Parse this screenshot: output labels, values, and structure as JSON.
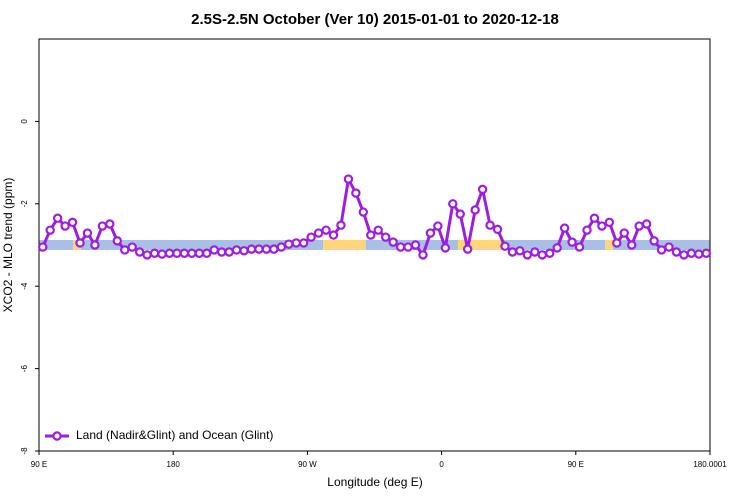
{
  "chart_data": {
    "type": "line",
    "title": "2.5S-2.5N October (Ver 10)   2015-01-01 to 2020-12-18",
    "xlabel": "Longitude (deg E)",
    "ylabel": "XCO2 - MLO trend (ppm)",
    "x": [
      92.5,
      97.5,
      102.5,
      107.5,
      112.5,
      117.5,
      122.5,
      127.5,
      132.5,
      137.5,
      142.5,
      147.5,
      152.5,
      157.5,
      162.5,
      167.5,
      172.5,
      177.5,
      182.5,
      187.5,
      192.5,
      197.5,
      202.5,
      207.5,
      212.5,
      217.5,
      222.5,
      227.5,
      232.5,
      237.5,
      242.5,
      247.5,
      252.5,
      257.5,
      262.5,
      267.5,
      272.5,
      277.5,
      282.5,
      287.5,
      292.5,
      297.5,
      302.5,
      307.5,
      312.5,
      317.5,
      322.5,
      327.5,
      332.5,
      337.5,
      342.5,
      347.5,
      352.5,
      357.5,
      362.5,
      367.5,
      372.5,
      377.5,
      382.5,
      387.5,
      392.5,
      397.5,
      402.5,
      407.5,
      412.5,
      417.5,
      422.5,
      427.5,
      432.5,
      437.5,
      442.5,
      447.5,
      452.5,
      457.5,
      462.5,
      467.5,
      472.5,
      477.5,
      482.5,
      487.5,
      492.5,
      497.5,
      502.5,
      507.5,
      512.5,
      517.5,
      522.5,
      527.5,
      532.5,
      537.5
    ],
    "series": [
      {
        "name": "Land (Nadir&Glint) and Ocean (Glint)",
        "color": "#9b1fdc",
        "values": [
          -3.05,
          -2.64,
          -2.35,
          -2.54,
          -2.45,
          -2.95,
          -2.71,
          -3.0,
          -2.54,
          -2.49,
          -2.9,
          -3.12,
          -3.05,
          -3.17,
          -3.24,
          -3.2,
          -3.22,
          -3.2,
          -3.2,
          -3.2,
          -3.2,
          -3.2,
          -3.2,
          -3.12,
          -3.17,
          -3.17,
          -3.12,
          -3.14,
          -3.1,
          -3.1,
          -3.1,
          -3.1,
          -3.05,
          -2.98,
          -2.95,
          -2.95,
          -2.81,
          -2.71,
          -2.64,
          -2.76,
          -2.52,
          -1.4,
          -1.74,
          -2.2,
          -2.76,
          -2.64,
          -2.81,
          -2.93,
          -3.05,
          -3.05,
          -3.0,
          -3.24,
          -2.71,
          -2.54,
          -3.07,
          -2.0,
          -2.25,
          -3.1,
          -2.15,
          -1.65,
          -2.52,
          -2.62,
          -3.03,
          -3.17,
          -3.14,
          -3.24,
          -3.17,
          -3.24,
          -3.2,
          -3.07,
          -2.59,
          -2.93,
          -3.05,
          -2.64,
          -2.35,
          -2.54,
          -2.45,
          -2.95,
          -2.71,
          -3.0,
          -2.54,
          -2.49,
          -2.9,
          -3.12,
          -3.05,
          -3.17,
          -3.24,
          -3.2,
          -3.22,
          -3.2
        ]
      }
    ],
    "xlim": [
      90,
      540
    ],
    "xticks": [
      {
        "value": 90,
        "label": "90 E"
      },
      180,
      {
        "value": 270,
        "label": "90 W"
      },
      {
        "value": 360,
        "label": "0"
      },
      {
        "value": 450,
        "label": "90 E"
      },
      180.0001
    ],
    "ylim": [
      -8,
      2
    ],
    "yticks": [
      -8,
      -6,
      -4,
      -2,
      0
    ],
    "legend": "lower left"
  }
}
